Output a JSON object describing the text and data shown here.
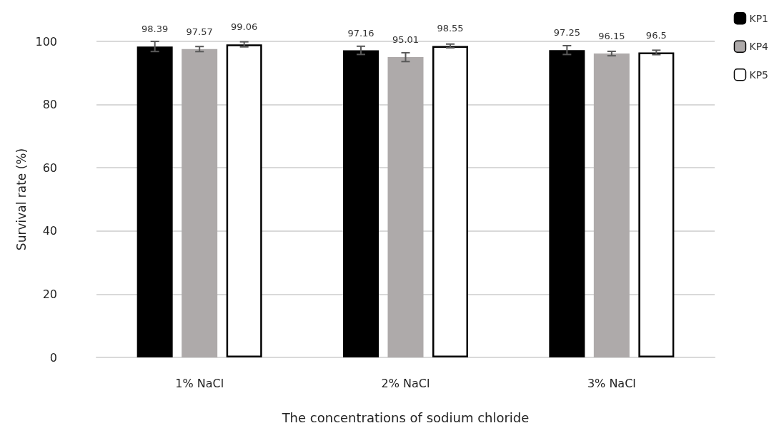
{
  "chart_data": {
    "type": "bar",
    "xlabel": "The concentrations of sodium chloride",
    "ylabel": "Survival rate (%)",
    "categories": [
      "1% NaCl",
      "2% NaCl",
      "3% NaCl"
    ],
    "series": [
      {
        "name": "KP1",
        "color": "#000000",
        "values": [
          98.39,
          97.16,
          97.25
        ],
        "errors": [
          1.6,
          1.3,
          1.4
        ]
      },
      {
        "name": "KP4",
        "color": "#aeaaaa",
        "values": [
          97.57,
          95.01,
          96.15
        ],
        "errors": [
          0.8,
          1.4,
          0.7
        ]
      },
      {
        "name": "KP5",
        "color": "#ffffff",
        "values": [
          99.06,
          98.55,
          96.5
        ],
        "errors": [
          0.8,
          0.6,
          0.7
        ]
      }
    ],
    "ylim": [
      0,
      100
    ],
    "yticks": [
      0,
      20,
      40,
      60,
      80,
      100
    ],
    "grid": "y",
    "legend": "top right",
    "data_labels": true
  }
}
